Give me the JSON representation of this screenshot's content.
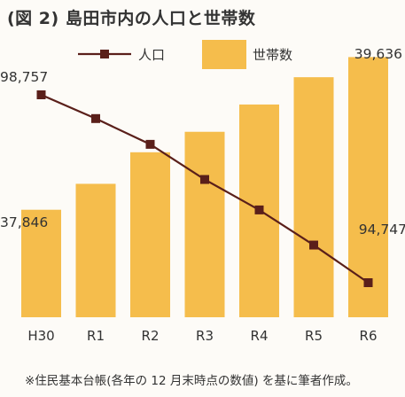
{
  "title": "(図 2) 島田市内の人口と世帯数",
  "note": "※住民基本台帳(各年の 12 月末時点の数値) を基に筆者作成。",
  "chart_data": {
    "type": "bar+line",
    "categories": [
      "H30",
      "R1",
      "R2",
      "R3",
      "R4",
      "R5",
      "R6"
    ],
    "series": [
      {
        "name": "世帯数",
        "type": "bar",
        "values": [
          37846,
          38150,
          38520,
          38760,
          39080,
          39400,
          39636
        ],
        "color": "#f5bd4c"
      },
      {
        "name": "人口",
        "type": "line",
        "values": [
          98757,
          98250,
          97700,
          96950,
          96300,
          95550,
          94747
        ],
        "color": "#5a1f1a"
      }
    ],
    "data_labels": [
      {
        "series": "人口",
        "category": "H30",
        "text": "98,757"
      },
      {
        "series": "世帯数",
        "category": "H30",
        "text": "37,846"
      },
      {
        "series": "世帯数",
        "category": "R6",
        "text": "39,636"
      },
      {
        "series": "人口",
        "category": "R6",
        "text": "94,747"
      }
    ],
    "legend": {
      "placement": "top",
      "entries": [
        "人口",
        "世帯数"
      ]
    },
    "grid": false
  }
}
